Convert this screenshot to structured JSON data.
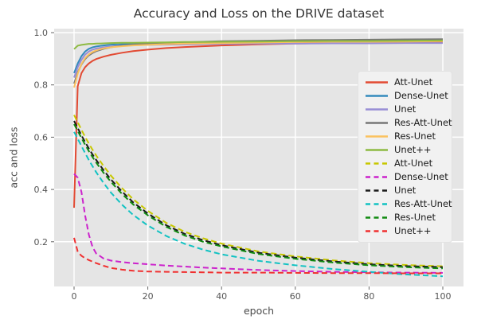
{
  "chart_data": {
    "type": "line",
    "title": "Accuracy and Loss on the DRIVE dataset",
    "xlabel": "epoch",
    "ylabel": "acc and loss",
    "grid": true,
    "legend_position": "center right",
    "xlim": [
      -5.4,
      105.6
    ],
    "ylim": [
      0.028,
      1.015
    ],
    "x_ticks": [
      0,
      20,
      40,
      60,
      80,
      100
    ],
    "x_tick_labels": [
      "0",
      "20",
      "40",
      "60",
      "80",
      "100"
    ],
    "y_ticks": [
      0.2,
      0.4,
      0.6,
      0.8,
      1.0
    ],
    "y_tick_labels": [
      "0.2",
      "0.4",
      "0.6",
      "0.8",
      "1.0"
    ],
    "x": [
      0,
      1,
      2,
      3,
      4,
      5,
      6,
      8,
      10,
      13,
      16,
      20,
      25,
      30,
      35,
      40,
      50,
      60,
      70,
      80,
      90,
      100
    ],
    "series": [
      {
        "label": "Att-Unet",
        "kind": "accuracy",
        "style": "solid",
        "color": "#E24A33",
        "values": [
          0.33,
          0.795,
          0.845,
          0.868,
          0.882,
          0.892,
          0.899,
          0.908,
          0.915,
          0.923,
          0.929,
          0.935,
          0.941,
          0.945,
          0.948,
          0.951,
          0.955,
          0.958,
          0.96,
          0.961,
          0.962,
          0.963
        ]
      },
      {
        "label": "Dense-Unet",
        "kind": "accuracy",
        "style": "solid",
        "color": "#348ABD",
        "values": [
          0.845,
          0.882,
          0.91,
          0.928,
          0.938,
          0.944,
          0.947,
          0.951,
          0.954,
          0.956,
          0.958,
          0.959,
          0.961,
          0.962,
          0.963,
          0.964,
          0.965,
          0.966,
          0.967,
          0.967,
          0.968,
          0.968
        ]
      },
      {
        "label": "Unet",
        "kind": "accuracy",
        "style": "solid",
        "color": "#988ED5",
        "values": [
          0.828,
          0.868,
          0.896,
          0.916,
          0.928,
          0.935,
          0.939,
          0.944,
          0.947,
          0.95,
          0.952,
          0.953,
          0.954,
          0.955,
          0.956,
          0.957,
          0.958,
          0.958,
          0.959,
          0.959,
          0.96,
          0.96
        ]
      },
      {
        "label": "Res-Att-Unet",
        "kind": "accuracy",
        "style": "solid",
        "color": "#777777",
        "values": [
          0.805,
          0.848,
          0.878,
          0.899,
          0.913,
          0.922,
          0.929,
          0.938,
          0.944,
          0.95,
          0.954,
          0.958,
          0.961,
          0.963,
          0.965,
          0.967,
          0.969,
          0.971,
          0.972,
          0.973,
          0.974,
          0.975
        ]
      },
      {
        "label": "Res-Unet",
        "kind": "accuracy",
        "style": "solid",
        "color": "#FBC15E",
        "values": [
          0.79,
          0.843,
          0.88,
          0.903,
          0.917,
          0.926,
          0.932,
          0.94,
          0.944,
          0.948,
          0.951,
          0.953,
          0.956,
          0.958,
          0.959,
          0.96,
          0.962,
          0.964,
          0.965,
          0.965,
          0.966,
          0.967
        ]
      },
      {
        "label": "Unet++",
        "kind": "accuracy",
        "style": "solid",
        "color": "#8EBA42",
        "values": [
          0.937,
          0.95,
          0.953,
          0.955,
          0.957,
          0.957,
          0.958,
          0.959,
          0.96,
          0.961,
          0.961,
          0.962,
          0.963,
          0.964,
          0.964,
          0.965,
          0.966,
          0.967,
          0.968,
          0.968,
          0.969,
          0.97
        ]
      },
      {
        "label": "Att-Unet",
        "kind": "loss",
        "style": "dashed",
        "color": "#C8C800",
        "values": [
          0.685,
          0.657,
          0.628,
          0.601,
          0.576,
          0.552,
          0.53,
          0.49,
          0.453,
          0.405,
          0.363,
          0.318,
          0.272,
          0.238,
          0.213,
          0.193,
          0.163,
          0.144,
          0.129,
          0.118,
          0.111,
          0.106
        ]
      },
      {
        "label": "Dense-Unet",
        "kind": "loss",
        "style": "dashed",
        "color": "#CC22CC",
        "values": [
          0.46,
          0.445,
          0.39,
          0.3,
          0.228,
          0.18,
          0.155,
          0.136,
          0.128,
          0.122,
          0.118,
          0.114,
          0.109,
          0.105,
          0.101,
          0.098,
          0.092,
          0.088,
          0.085,
          0.083,
          0.082,
          0.081
        ]
      },
      {
        "label": "Unet",
        "kind": "loss",
        "style": "dashed",
        "color": "#1A1A1A",
        "values": [
          0.662,
          0.635,
          0.607,
          0.581,
          0.557,
          0.534,
          0.513,
          0.474,
          0.438,
          0.392,
          0.351,
          0.308,
          0.263,
          0.23,
          0.206,
          0.187,
          0.158,
          0.139,
          0.125,
          0.114,
          0.107,
          0.103
        ]
      },
      {
        "label": "Res-Att-Unet",
        "kind": "loss",
        "style": "dashed",
        "color": "#12C2C2",
        "values": [
          0.62,
          0.594,
          0.566,
          0.539,
          0.513,
          0.489,
          0.466,
          0.425,
          0.388,
          0.342,
          0.303,
          0.262,
          0.222,
          0.192,
          0.17,
          0.152,
          0.127,
          0.11,
          0.096,
          0.085,
          0.075,
          0.068
        ]
      },
      {
        "label": "Res-Unet",
        "kind": "loss",
        "style": "dashed",
        "color": "#108A10",
        "values": [
          0.65,
          0.624,
          0.597,
          0.571,
          0.547,
          0.524,
          0.503,
          0.464,
          0.429,
          0.383,
          0.343,
          0.301,
          0.257,
          0.224,
          0.2,
          0.182,
          0.153,
          0.135,
          0.121,
          0.11,
          0.103,
          0.098
        ]
      },
      {
        "label": "Unet++",
        "kind": "loss",
        "style": "dashed",
        "color": "#F03030",
        "values": [
          0.215,
          0.162,
          0.146,
          0.137,
          0.13,
          0.124,
          0.118,
          0.108,
          0.1,
          0.093,
          0.089,
          0.086,
          0.085,
          0.084,
          0.083,
          0.082,
          0.082,
          0.081,
          0.08,
          0.08,
          0.079,
          0.079
        ]
      }
    ],
    "colors": {
      "plot_background": "#E5E5E5",
      "grid": "#FFFFFF",
      "tick_label": "#555555",
      "title_text": "#363636"
    }
  }
}
